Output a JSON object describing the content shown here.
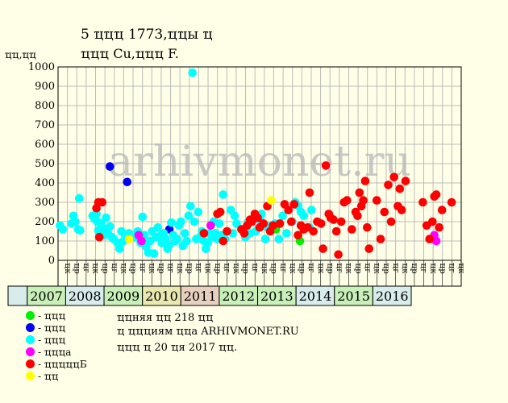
{
  "title_line1": "5 ҵҵҵ 1773,ҵҵы ҵ",
  "title_line2": "ҵҵҵ Cu,ҵҵҵ F.",
  "watermark": "arhivmonet.ru",
  "legend": [
    {
      "label": "- ҵҵҵ",
      "color": "#00ee00"
    },
    {
      "label": "- ҵҵҵ",
      "color": "#0000ee"
    },
    {
      "label": "- ҵҵҵ",
      "color": "#00ffff"
    },
    {
      "label": "- ҵҵҵа",
      "color": "#ff00ff"
    },
    {
      "label": "- ҵҵҵҵҵБ",
      "color": "#ff0000"
    },
    {
      "label": "- ҵҵ",
      "color": "#ffff00"
    }
  ],
  "notes": [
    "ҵҵняя ҵҵ 218 ҵҵ",
    "ҵ ҵҵҵиям ҵҵа ARHIVMONET.RU",
    "ҵҵҵ ҵ 20 ҵя 2017 ҵҵ."
  ],
  "chart_data": {
    "type": "scatter",
    "title": "5 ҵҵҵ 1773,ҵҵы ҵ ҵҵҵ Cu,ҵҵҵ F.",
    "ylabel": "ҵҵ,ҵҵ",
    "ylim": [
      0,
      1000
    ],
    "yticks": [
      0,
      100,
      200,
      300,
      400,
      500,
      600,
      700,
      800,
      900,
      1000
    ],
    "grid": true,
    "x_unit": "period index (0-based, 2 per year from 2006-II)",
    "xlim": [
      0,
      21
    ],
    "year_labels": [
      {
        "label": "",
        "start": 0,
        "span": 1,
        "color": "#d8ecec"
      },
      {
        "label": "2007",
        "start": 1,
        "span": 2,
        "color": "#c8f0b8"
      },
      {
        "label": "2008",
        "start": 3,
        "span": 2,
        "color": "#d8ecec"
      },
      {
        "label": "2009",
        "start": 5,
        "span": 2,
        "color": "#c8f0b8"
      },
      {
        "label": "2010",
        "start": 7,
        "span": 2,
        "color": "#e8e8b0"
      },
      {
        "label": "2011",
        "start": 9,
        "span": 2,
        "color": "#e8d0c0"
      },
      {
        "label": "2012",
        "start": 11,
        "span": 2,
        "color": "#c8f0b8"
      },
      {
        "label": "2013",
        "start": 13,
        "span": 2,
        "color": "#c8f0b8"
      },
      {
        "label": "2014",
        "start": 15,
        "span": 2,
        "color": "#d8ecec"
      },
      {
        "label": "2015",
        "start": 17,
        "span": 2,
        "color": "#c8f0b8"
      },
      {
        "label": "2016",
        "start": 19,
        "span": 2,
        "color": "#d8ecec"
      }
    ],
    "x_tick_labels": [
      "ҵк",
      "ҵр",
      "ҵг",
      "ҵк",
      "ҵр",
      "ҵг",
      "ҵк",
      "ҵр",
      "ҵг",
      "ҵк",
      "ҵр",
      "ҵг",
      "ҵк",
      "ҵр",
      "ҵг",
      "ҵк",
      "ҵр",
      "ҵг",
      "ҵк",
      "ҵр",
      "ҵг",
      "ҵк",
      "ҵр",
      "ҵг",
      "ҵк",
      "ҵр",
      "ҵг",
      "ҵк",
      "ҵр",
      "ҵг",
      "ҵк",
      "ҵр",
      "ҵг",
      "ҵк",
      "ҵр",
      "ҵг",
      "ҵк",
      "ҵр",
      "ҵг",
      "ҵк",
      "ҵр",
      "ҵг",
      "ҵк"
    ],
    "series": [
      {
        "name": "ҵҵҵ",
        "color": "#00ee00",
        "points": [
          [
            11.35,
            160
          ],
          [
            12.6,
            100
          ]
        ]
      },
      {
        "name": "ҵҵҵ",
        "color": "#0000ee",
        "points": [
          [
            2.7,
            485
          ],
          [
            3.6,
            405
          ],
          [
            5.8,
            160
          ]
        ]
      },
      {
        "name": "ҵҵҵ",
        "color": "#00ffff",
        "points": [
          [
            0.1,
            180
          ],
          [
            0.25,
            160
          ],
          [
            0.7,
            190
          ],
          [
            0.8,
            230
          ],
          [
            0.9,
            200
          ],
          [
            1.05,
            160
          ],
          [
            1.1,
            320
          ],
          [
            1.15,
            155
          ],
          [
            1.8,
            230
          ],
          [
            1.9,
            215
          ],
          [
            2.0,
            240
          ],
          [
            2.05,
            200
          ],
          [
            2.1,
            155
          ],
          [
            2.25,
            190
          ],
          [
            2.35,
            165
          ],
          [
            2.4,
            130
          ],
          [
            2.5,
            220
          ],
          [
            2.6,
            140
          ],
          [
            2.7,
            175
          ],
          [
            2.8,
            120
          ],
          [
            2.9,
            110
          ],
          [
            3.1,
            90
          ],
          [
            3.2,
            60
          ],
          [
            3.3,
            150
          ],
          [
            3.4,
            100
          ],
          [
            3.5,
            130
          ],
          [
            3.7,
            140
          ],
          [
            4.0,
            120
          ],
          [
            4.15,
            150
          ],
          [
            4.3,
            90
          ],
          [
            4.4,
            225
          ],
          [
            4.5,
            130
          ],
          [
            4.6,
            70
          ],
          [
            4.7,
            40
          ],
          [
            4.8,
            100
          ],
          [
            4.9,
            150
          ],
          [
            5.0,
            35
          ],
          [
            5.1,
            120
          ],
          [
            5.2,
            170
          ],
          [
            5.3,
            125
          ],
          [
            5.4,
            90
          ],
          [
            5.5,
            140
          ],
          [
            5.6,
            110
          ],
          [
            5.7,
            60
          ],
          [
            5.8,
            80
          ],
          [
            5.9,
            195
          ],
          [
            6.0,
            130
          ],
          [
            6.1,
            100
          ],
          [
            6.2,
            110
          ],
          [
            6.3,
            180
          ],
          [
            6.4,
            200
          ],
          [
            6.5,
            75
          ],
          [
            6.6,
            140
          ],
          [
            6.7,
            100
          ],
          [
            6.8,
            230
          ],
          [
            6.9,
            280
          ],
          [
            7.0,
            970
          ],
          [
            7.1,
            200
          ],
          [
            7.2,
            110
          ],
          [
            7.3,
            250
          ],
          [
            7.4,
            120
          ],
          [
            7.5,
            150
          ],
          [
            7.6,
            100
          ],
          [
            7.7,
            60
          ],
          [
            7.8,
            90
          ],
          [
            7.9,
            140
          ],
          [
            8.0,
            120
          ],
          [
            8.1,
            200
          ],
          [
            8.2,
            140
          ],
          [
            8.3,
            110
          ],
          [
            8.4,
            190
          ],
          [
            8.5,
            130
          ],
          [
            8.6,
            340
          ],
          [
            8.7,
            110
          ],
          [
            8.8,
            150
          ],
          [
            9.0,
            260
          ],
          [
            9.1,
            140
          ],
          [
            9.2,
            230
          ],
          [
            9.3,
            190
          ],
          [
            9.6,
            160
          ],
          [
            9.75,
            120
          ],
          [
            9.9,
            200
          ],
          [
            10.0,
            140
          ],
          [
            10.3,
            150
          ],
          [
            10.4,
            230
          ],
          [
            10.5,
            210
          ],
          [
            10.6,
            240
          ],
          [
            10.7,
            180
          ],
          [
            10.8,
            110
          ],
          [
            10.9,
            170
          ],
          [
            11.1,
            180
          ],
          [
            11.3,
            190
          ],
          [
            11.5,
            110
          ],
          [
            11.7,
            230
          ],
          [
            11.9,
            140
          ],
          [
            12.2,
            200
          ],
          [
            12.35,
            300
          ],
          [
            12.5,
            280
          ],
          [
            12.65,
            250
          ],
          [
            12.8,
            230
          ],
          [
            13.1,
            170
          ],
          [
            13.2,
            260
          ]
        ]
      },
      {
        "name": "ҵҵҵа",
        "color": "#ff00ff",
        "points": [
          [
            4.2,
            130
          ],
          [
            4.35,
            100
          ],
          [
            7.95,
            180
          ],
          [
            19.6,
            130
          ],
          [
            19.7,
            100
          ]
        ]
      },
      {
        "name": "ҵҵҵҵҵБ",
        "color": "#ff0000",
        "points": [
          [
            2.0,
            270
          ],
          [
            2.1,
            300
          ],
          [
            2.3,
            300
          ],
          [
            2.15,
            120
          ],
          [
            7.6,
            140
          ],
          [
            8.3,
            240
          ],
          [
            8.45,
            250
          ],
          [
            8.6,
            100
          ],
          [
            8.8,
            150
          ],
          [
            9.55,
            160
          ],
          [
            9.7,
            140
          ],
          [
            9.85,
            180
          ],
          [
            10.0,
            210
          ],
          [
            10.1,
            200
          ],
          [
            10.25,
            240
          ],
          [
            10.4,
            220
          ],
          [
            10.5,
            170
          ],
          [
            10.7,
            190
          ],
          [
            10.9,
            280
          ],
          [
            11.05,
            150
          ],
          [
            11.2,
            180
          ],
          [
            11.55,
            190
          ],
          [
            11.8,
            290
          ],
          [
            12.0,
            260
          ],
          [
            12.15,
            200
          ],
          [
            12.3,
            290
          ],
          [
            12.5,
            130
          ],
          [
            12.65,
            180
          ],
          [
            12.8,
            160
          ],
          [
            13.0,
            170
          ],
          [
            13.1,
            350
          ],
          [
            13.3,
            150
          ],
          [
            13.5,
            200
          ],
          [
            13.7,
            190
          ],
          [
            13.8,
            60
          ],
          [
            13.95,
            490
          ],
          [
            14.1,
            240
          ],
          [
            14.2,
            220
          ],
          [
            14.35,
            210
          ],
          [
            14.5,
            150
          ],
          [
            14.6,
            30
          ],
          [
            14.75,
            200
          ],
          [
            14.9,
            300
          ],
          [
            15.05,
            310
          ],
          [
            15.3,
            160
          ],
          [
            15.5,
            250
          ],
          [
            15.6,
            230
          ],
          [
            15.7,
            350
          ],
          [
            15.8,
            280
          ],
          [
            15.9,
            310
          ],
          [
            16.0,
            410
          ],
          [
            16.1,
            170
          ],
          [
            16.2,
            60
          ],
          [
            16.6,
            310
          ],
          [
            16.8,
            110
          ],
          [
            17.0,
            250
          ],
          [
            17.2,
            390
          ],
          [
            17.35,
            200
          ],
          [
            17.5,
            430
          ],
          [
            17.7,
            280
          ],
          [
            17.8,
            370
          ],
          [
            17.9,
            260
          ],
          [
            18.1,
            410
          ],
          [
            19.0,
            300
          ],
          [
            19.2,
            180
          ],
          [
            19.35,
            110
          ],
          [
            19.5,
            200
          ],
          [
            19.6,
            330
          ],
          [
            19.7,
            340
          ],
          [
            19.85,
            170
          ],
          [
            20.0,
            260
          ],
          [
            20.5,
            300
          ]
        ]
      },
      {
        "name": "ҵҵ",
        "color": "#ffff00",
        "points": [
          [
            3.7,
            110
          ],
          [
            11.1,
            310
          ]
        ]
      }
    ]
  }
}
